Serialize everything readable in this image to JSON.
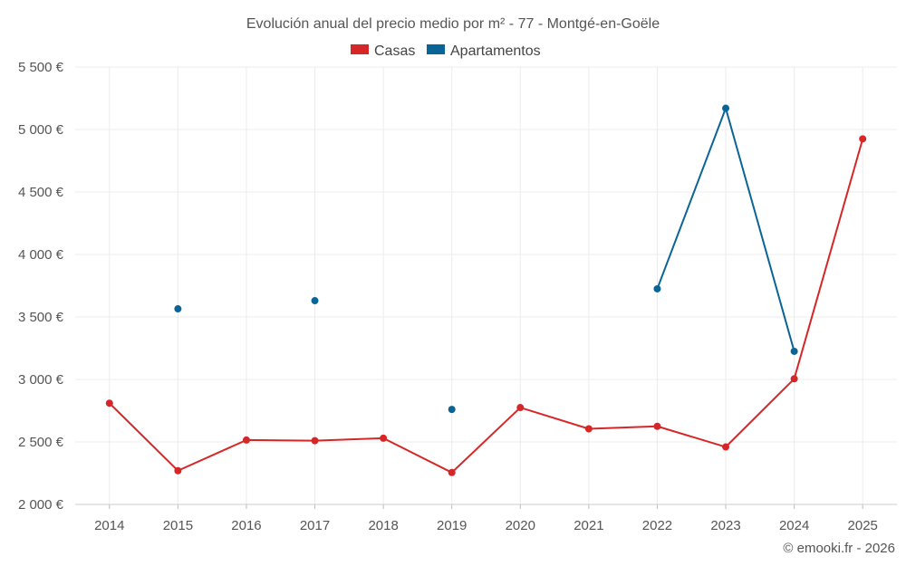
{
  "chart_data": {
    "type": "line",
    "title": "Evolución anual del precio medio por m² - 77 - Montgé-en-Goële",
    "categories": [
      "2014",
      "2015",
      "2016",
      "2017",
      "2018",
      "2019",
      "2020",
      "2021",
      "2022",
      "2023",
      "2024",
      "2025"
    ],
    "series": [
      {
        "name": "Casas",
        "color": "#d62728",
        "values": [
          2810,
          2270,
          2515,
          2510,
          2530,
          2255,
          2775,
          2605,
          2625,
          2460,
          3005,
          4925
        ]
      },
      {
        "name": "Apartamentos",
        "color": "#0a6496",
        "values": [
          null,
          3565,
          null,
          3630,
          null,
          2760,
          null,
          null,
          3725,
          5170,
          3225,
          null
        ]
      }
    ],
    "y_ticks": [
      "2 000 €",
      "2 500 €",
      "3 000 €",
      "3 500 €",
      "4 000 €",
      "4 500 €",
      "5 000 €",
      "5 500 €"
    ],
    "y_tick_values": [
      2000,
      2500,
      3000,
      3500,
      4000,
      4500,
      5000,
      5500
    ],
    "ylim": [
      2000,
      5500
    ],
    "xlabel": "",
    "ylabel": "",
    "legend_position": "top-center",
    "grid": true
  },
  "credit": "© emooki.fr - 2026"
}
